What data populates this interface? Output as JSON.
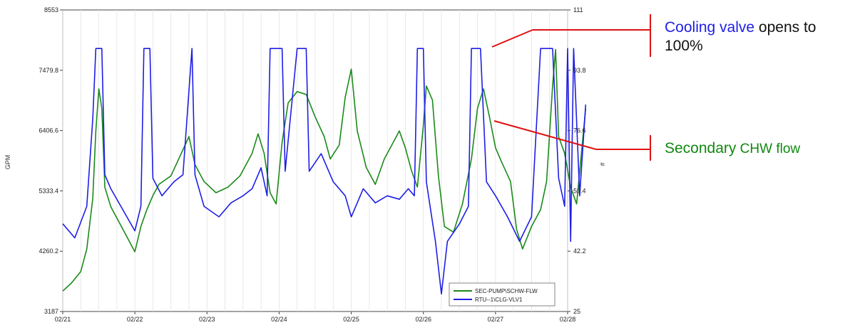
{
  "chart_data": {
    "type": "line",
    "x_start": "02/21",
    "x_end": "02/28",
    "x_ticks": [
      "02/21",
      "02/22",
      "02/23",
      "02/24",
      "02/25",
      "02/26",
      "02/27",
      "02/28"
    ],
    "y_left": {
      "label": "GPM",
      "range": [
        3187,
        8553
      ],
      "ticks": [
        "8553",
        "7479.8",
        "6406.6",
        "5333.4",
        "4260.2",
        "3187"
      ]
    },
    "y_right": {
      "label": "#",
      "range": [
        25,
        111
      ],
      "ticks": [
        "111",
        "93.8",
        "76.6",
        "59.4",
        "42.2",
        "25"
      ]
    },
    "grid": {
      "vertical": true,
      "horizontal": false
    },
    "legend": {
      "placement": "bottom-right"
    },
    "series": [
      {
        "name": "SEC-PUMP\\SCHW-FLW",
        "axis": "left",
        "color": "#1a8a1a",
        "points": [
          [
            "02/21 00:00",
            3550
          ],
          [
            "02/21 03:00",
            3700
          ],
          [
            "02/21 06:00",
            3900
          ],
          [
            "02/21 08:00",
            4300
          ],
          [
            "02/21 10:00",
            5200
          ],
          [
            "02/21 11:00",
            6400
          ],
          [
            "02/21 12:00",
            7150
          ],
          [
            "02/21 13:00",
            6800
          ],
          [
            "02/21 14:00",
            5400
          ],
          [
            "02/21 16:00",
            5050
          ],
          [
            "02/21 18:00",
            4850
          ],
          [
            "02/21 21:00",
            4550
          ],
          [
            "02/22 00:00",
            4250
          ],
          [
            "02/22 02:00",
            4700
          ],
          [
            "02/22 04:00",
            5000
          ],
          [
            "02/22 06:00",
            5250
          ],
          [
            "02/22 08:00",
            5450
          ],
          [
            "02/22 12:00",
            5600
          ],
          [
            "02/22 15:00",
            5950
          ],
          [
            "02/22 18:00",
            6300
          ],
          [
            "02/22 20:00",
            5800
          ],
          [
            "02/22 23:00",
            5500
          ],
          [
            "02/23 03:00",
            5300
          ],
          [
            "02/23 07:00",
            5400
          ],
          [
            "02/23 11:00",
            5600
          ],
          [
            "02/23 15:00",
            6000
          ],
          [
            "02/23 17:00",
            6350
          ],
          [
            "02/23 19:00",
            6000
          ],
          [
            "02/23 21:00",
            5300
          ],
          [
            "02/23 23:00",
            5100
          ],
          [
            "02/24 01:00",
            6200
          ],
          [
            "02/24 03:00",
            6900
          ],
          [
            "02/24 06:00",
            7100
          ],
          [
            "02/24 09:00",
            7050
          ],
          [
            "02/24 12:00",
            6650
          ],
          [
            "02/24 15:00",
            6300
          ],
          [
            "02/24 17:00",
            5900
          ],
          [
            "02/24 20:00",
            6150
          ],
          [
            "02/24 22:00",
            7000
          ],
          [
            "02/25 00:00",
            7500
          ],
          [
            "02/25 02:00",
            6400
          ],
          [
            "02/25 05:00",
            5750
          ],
          [
            "02/25 08:00",
            5450
          ],
          [
            "02/25 11:00",
            5900
          ],
          [
            "02/25 14:00",
            6200
          ],
          [
            "02/25 16:00",
            6400
          ],
          [
            "02/25 18:00",
            6100
          ],
          [
            "02/25 20:00",
            5700
          ],
          [
            "02/25 22:00",
            5400
          ],
          [
            "02/26 00:00",
            6500
          ],
          [
            "02/26 01:00",
            7200
          ],
          [
            "02/26 03:00",
            6950
          ],
          [
            "02/26 05:00",
            5600
          ],
          [
            "02/26 07:00",
            4700
          ],
          [
            "02/26 10:00",
            4600
          ],
          [
            "02/26 13:00",
            5100
          ],
          [
            "02/26 16:00",
            5900
          ],
          [
            "02/26 18:00",
            6800
          ],
          [
            "02/26 20:00",
            7150
          ],
          [
            "02/26 22:00",
            6650
          ],
          [
            "02/27 00:00",
            6100
          ],
          [
            "02/27 02:00",
            5850
          ],
          [
            "02/27 05:00",
            5500
          ],
          [
            "02/27 07:00",
            4650
          ],
          [
            "02/27 09:00",
            4300
          ],
          [
            "02/27 12:00",
            4700
          ],
          [
            "02/27 15:00",
            5000
          ],
          [
            "02/27 17:00",
            5500
          ],
          [
            "02/27 19:00",
            7200
          ],
          [
            "02/27 20:00",
            7850
          ],
          [
            "02/27 21:00",
            6300
          ],
          [
            "02/27 23:00",
            6000
          ],
          [
            "02/28 01:00",
            5400
          ],
          [
            "02/28 03:00",
            5100
          ],
          [
            "02/28 06:00",
            6800
          ]
        ]
      },
      {
        "name": "RTU--1\\CLG-VLV1",
        "axis": "right",
        "color": "#1e1ee6",
        "points": [
          [
            "02/21 00:00",
            50
          ],
          [
            "02/21 04:00",
            46
          ],
          [
            "02/21 08:00",
            55
          ],
          [
            "02/21 10:00",
            80
          ],
          [
            "02/21 11:00",
            100
          ],
          [
            "02/21 13:00",
            100
          ],
          [
            "02/21 14:00",
            64
          ],
          [
            "02/21 16:00",
            60
          ],
          [
            "02/21 20:00",
            54
          ],
          [
            "02/22 00:00",
            48
          ],
          [
            "02/22 02:00",
            55
          ],
          [
            "02/22 03:00",
            100
          ],
          [
            "02/22 05:00",
            100
          ],
          [
            "02/22 06:00",
            63
          ],
          [
            "02/22 09:00",
            58
          ],
          [
            "02/22 13:00",
            62
          ],
          [
            "02/22 16:00",
            64
          ],
          [
            "02/22 19:00",
            100
          ],
          [
            "02/22 20:00",
            64
          ],
          [
            "02/22 23:00",
            55
          ],
          [
            "02/23 04:00",
            52
          ],
          [
            "02/23 08:00",
            56
          ],
          [
            "02/23 12:00",
            58
          ],
          [
            "02/23 15:00",
            60
          ],
          [
            "02/23 18:00",
            66
          ],
          [
            "02/23 20:00",
            58
          ],
          [
            "02/23 21:00",
            100
          ],
          [
            "02/24 01:00",
            100
          ],
          [
            "02/24 02:00",
            65
          ],
          [
            "02/24 06:00",
            100
          ],
          [
            "02/24 09:00",
            100
          ],
          [
            "02/24 10:00",
            65
          ],
          [
            "02/24 14:00",
            70
          ],
          [
            "02/24 18:00",
            62
          ],
          [
            "02/24 22:00",
            58
          ],
          [
            "02/25 00:00",
            52
          ],
          [
            "02/25 04:00",
            60
          ],
          [
            "02/25 08:00",
            56
          ],
          [
            "02/25 12:00",
            58
          ],
          [
            "02/25 16:00",
            57
          ],
          [
            "02/25 19:00",
            60
          ],
          [
            "02/25 21:00",
            58
          ],
          [
            "02/25 22:00",
            100
          ],
          [
            "02/26 00:00",
            100
          ],
          [
            "02/26 01:00",
            62
          ],
          [
            "02/26 04:00",
            45
          ],
          [
            "02/26 06:00",
            30
          ],
          [
            "02/26 08:00",
            45
          ],
          [
            "02/26 12:00",
            50
          ],
          [
            "02/26 15:00",
            55
          ],
          [
            "02/26 16:00",
            100
          ],
          [
            "02/26 19:00",
            100
          ],
          [
            "02/26 21:00",
            62
          ],
          [
            "02/27 00:00",
            58
          ],
          [
            "02/27 04:00",
            52
          ],
          [
            "02/27 08:00",
            45
          ],
          [
            "02/27 12:00",
            52
          ],
          [
            "02/27 15:00",
            100
          ],
          [
            "02/27 19:00",
            100
          ],
          [
            "02/27 21:00",
            63
          ],
          [
            "02/27 23:00",
            55
          ],
          [
            "02/28 00:00",
            100
          ],
          [
            "02/28 01:00",
            45
          ],
          [
            "02/28 02:00",
            100
          ],
          [
            "02/28 04:00",
            58
          ],
          [
            "02/28 06:00",
            84
          ]
        ]
      }
    ]
  },
  "annotations": {
    "cooling": {
      "highlight": "Cooling valve",
      "rest_line1": " opens to",
      "line2": "100%",
      "highlight_color": "#1e1ee6",
      "text_color": "#111111"
    },
    "flow": {
      "highlight": "Secondary",
      "rest": " CHW flow",
      "color": "#118811"
    },
    "line_color": "#e01010"
  }
}
